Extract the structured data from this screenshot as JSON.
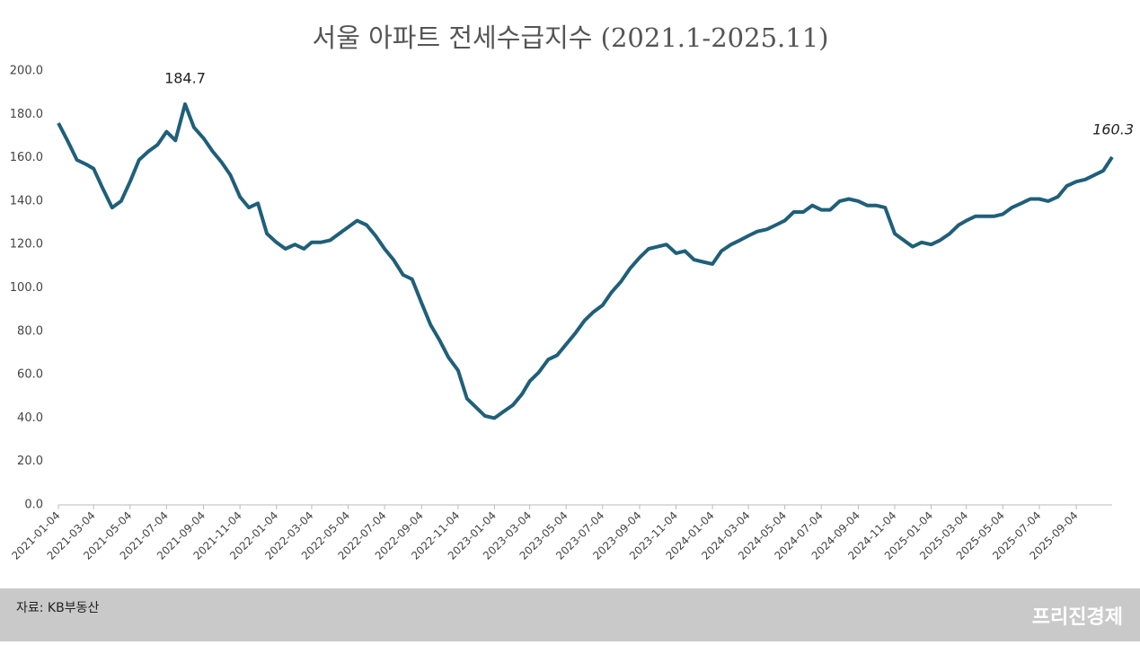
{
  "chart_data": {
    "type": "line",
    "title": "서울 아파트 전세수급지수 (2021.1-2025.11)",
    "source": "자료: KB부동산",
    "watermark": "프리진경제",
    "x": [
      "2021-01-04",
      "2021-01-19",
      "2021-02-04",
      "2021-02-19",
      "2021-03-04",
      "2021-03-19",
      "2021-04-04",
      "2021-04-19",
      "2021-05-04",
      "2021-05-19",
      "2021-06-04",
      "2021-06-19",
      "2021-07-04",
      "2021-07-19",
      "2021-08-04",
      "2021-08-19",
      "2021-09-04",
      "2021-09-19",
      "2021-10-04",
      "2021-10-19",
      "2021-11-04",
      "2021-11-19",
      "2021-12-04",
      "2021-12-19",
      "2022-01-04",
      "2022-01-19",
      "2022-02-04",
      "2022-02-19",
      "2022-03-04",
      "2022-03-19",
      "2022-04-04",
      "2022-04-19",
      "2022-05-04",
      "2022-05-19",
      "2022-06-04",
      "2022-06-19",
      "2022-07-04",
      "2022-07-19",
      "2022-08-04",
      "2022-08-19",
      "2022-09-04",
      "2022-09-19",
      "2022-10-04",
      "2022-10-19",
      "2022-11-04",
      "2022-11-19",
      "2022-12-04",
      "2022-12-19",
      "2023-01-04",
      "2023-01-19",
      "2023-02-04",
      "2023-02-19",
      "2023-03-04",
      "2023-03-19",
      "2023-04-04",
      "2023-04-19",
      "2023-05-04",
      "2023-05-19",
      "2023-06-04",
      "2023-06-19",
      "2023-07-04",
      "2023-07-19",
      "2023-08-04",
      "2023-08-19",
      "2023-09-04",
      "2023-09-19",
      "2023-10-04",
      "2023-10-19",
      "2023-11-04",
      "2023-11-19",
      "2023-12-04",
      "2023-12-19",
      "2024-01-04",
      "2024-01-19",
      "2024-02-04",
      "2024-02-19",
      "2024-03-04",
      "2024-03-19",
      "2024-04-04",
      "2024-04-19",
      "2024-05-04",
      "2024-05-19",
      "2024-06-04",
      "2024-06-19",
      "2024-07-04",
      "2024-07-19",
      "2024-08-04",
      "2024-08-19",
      "2024-09-04",
      "2024-09-19",
      "2024-10-04",
      "2024-10-19",
      "2024-11-04",
      "2024-11-19",
      "2024-12-04",
      "2024-12-19",
      "2025-01-04",
      "2025-01-19",
      "2025-02-04",
      "2025-02-19",
      "2025-03-04",
      "2025-03-19",
      "2025-04-04",
      "2025-04-19",
      "2025-05-04",
      "2025-05-19",
      "2025-06-04",
      "2025-06-19",
      "2025-07-04",
      "2025-07-19",
      "2025-08-04",
      "2025-08-19",
      "2025-09-04",
      "2025-09-19",
      "2025-10-04",
      "2025-10-19",
      "2025-11-03"
    ],
    "series": [
      {
        "color": "#1f5f7a",
        "values": [
          176,
          168,
          159,
          157,
          155,
          146,
          137,
          140,
          149,
          159,
          163,
          166,
          172,
          168,
          184.7,
          174,
          169,
          163,
          158,
          152,
          142,
          137,
          139,
          125,
          121,
          118,
          120,
          118,
          121,
          121,
          122,
          125,
          128,
          131,
          129,
          124,
          118,
          113,
          106,
          104,
          93,
          83,
          76,
          68,
          62,
          49,
          45,
          41,
          40,
          43,
          46,
          51,
          57,
          61,
          67,
          69,
          74,
          79,
          85,
          89,
          92,
          98,
          103,
          109,
          114,
          118,
          119,
          120,
          116,
          117,
          113,
          112,
          111,
          117,
          120,
          122,
          124,
          126,
          127,
          129,
          131,
          135,
          135,
          138,
          136,
          136,
          140,
          141,
          140,
          138,
          138,
          137,
          125,
          122,
          119,
          121,
          120,
          122,
          125,
          129,
          131,
          133,
          133,
          133,
          134,
          137,
          139,
          141,
          141,
          140,
          142,
          147,
          149,
          150,
          152,
          154,
          160.3
        ]
      }
    ],
    "xlim": [
      "2021-01-04",
      "2025-11-03"
    ],
    "xticks": [
      "2021-01-04",
      "2021-03-04",
      "2021-05-04",
      "2021-07-04",
      "2021-09-04",
      "2021-11-04",
      "2022-01-04",
      "2022-03-04",
      "2022-05-04",
      "2022-07-04",
      "2022-09-04",
      "2022-11-04",
      "2023-01-04",
      "2023-03-04",
      "2023-05-04",
      "2023-07-04",
      "2023-09-04",
      "2023-11-04",
      "2024-01-04",
      "2024-03-04",
      "2024-05-04",
      "2024-07-04",
      "2024-09-04",
      "2024-11-04",
      "2025-01-04",
      "2025-03-04",
      "2025-05-04",
      "2025-07-04",
      "2025-09-04"
    ],
    "ylim": [
      0,
      200
    ],
    "yticks": [
      {
        "value": 0,
        "label": "0.0"
      },
      {
        "value": 20,
        "label": "20.0"
      },
      {
        "value": 40,
        "label": "40.0"
      },
      {
        "value": 60,
        "label": "60.0"
      },
      {
        "value": 80,
        "label": "80.0"
      },
      {
        "value": 100,
        "label": "100.0"
      },
      {
        "value": 120,
        "label": "120.0"
      },
      {
        "value": 140,
        "label": "140.0"
      },
      {
        "value": 160,
        "label": "160.0"
      },
      {
        "value": 180,
        "label": "180.0"
      },
      {
        "value": 200,
        "label": "200.0"
      }
    ],
    "grid": false
  }
}
